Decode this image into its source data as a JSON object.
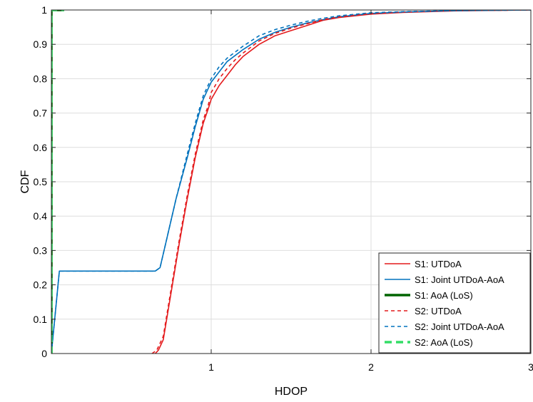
{
  "chart_data": {
    "type": "line",
    "title": "",
    "xlabel": "HDOP",
    "ylabel": "CDF",
    "xlim": [
      0,
      3
    ],
    "ylim": [
      0,
      1
    ],
    "xticks": [
      1,
      2,
      3
    ],
    "xtick_labels": [
      "1",
      "2",
      "3"
    ],
    "yticks": [
      0,
      0.1,
      0.2,
      0.3,
      0.4,
      0.5,
      0.6,
      0.7,
      0.8,
      0.9,
      1
    ],
    "ytick_labels": [
      "0",
      "0.1",
      "0.2",
      "0.3",
      "0.4",
      "0.5",
      "0.6",
      "0.7",
      "0.8",
      "0.9",
      "1"
    ],
    "grid": true,
    "legend_position": "bottom-right",
    "series": [
      {
        "name": "S1: UTDoA",
        "color": "#e41a1c",
        "dash": "solid",
        "width": "normal",
        "x": [
          0.65,
          0.67,
          0.7,
          0.75,
          0.8,
          0.85,
          0.9,
          0.95,
          0.98,
          1.0,
          1.05,
          1.1,
          1.15,
          1.2,
          1.3,
          1.4,
          1.5,
          1.6,
          1.7,
          1.8,
          2.0,
          2.2,
          2.5,
          3.0
        ],
        "y": [
          0.0,
          0.01,
          0.04,
          0.18,
          0.32,
          0.45,
          0.57,
          0.67,
          0.71,
          0.74,
          0.78,
          0.81,
          0.84,
          0.865,
          0.9,
          0.925,
          0.94,
          0.955,
          0.97,
          0.978,
          0.988,
          0.993,
          0.997,
          1.0
        ]
      },
      {
        "name": "S1: Joint UTDoA-AoA",
        "color": "#0072bd",
        "dash": "solid",
        "width": "normal",
        "x": [
          0.0,
          0.05,
          0.1,
          0.3,
          0.5,
          0.65,
          0.68,
          0.72,
          0.78,
          0.85,
          0.9,
          0.95,
          1.0,
          1.05,
          1.1,
          1.2,
          1.3,
          1.4,
          1.5,
          1.6,
          1.7,
          1.8,
          2.0,
          2.2,
          2.5,
          3.0
        ],
        "y": [
          0.0,
          0.24,
          0.24,
          0.24,
          0.24,
          0.24,
          0.25,
          0.33,
          0.45,
          0.57,
          0.66,
          0.74,
          0.79,
          0.82,
          0.85,
          0.885,
          0.915,
          0.935,
          0.95,
          0.962,
          0.972,
          0.98,
          0.99,
          0.994,
          0.998,
          1.0
        ]
      },
      {
        "name": "S1: AoA (LoS)",
        "color": "#006400",
        "dash": "solid",
        "width": "thick",
        "x": [
          0.0,
          0.0,
          0.08
        ],
        "y": [
          0.0,
          1.0,
          1.0
        ]
      },
      {
        "name": "S2: UTDoA",
        "color": "#e41a1c",
        "dash": "dashed",
        "width": "normal",
        "x": [
          0.63,
          0.66,
          0.7,
          0.75,
          0.8,
          0.85,
          0.9,
          0.95,
          0.98,
          1.0,
          1.05,
          1.1,
          1.15,
          1.2,
          1.3,
          1.4,
          1.5,
          1.6,
          1.7,
          1.8,
          2.0,
          2.2,
          2.5,
          3.0
        ],
        "y": [
          0.0,
          0.01,
          0.05,
          0.19,
          0.33,
          0.46,
          0.58,
          0.68,
          0.72,
          0.76,
          0.8,
          0.83,
          0.855,
          0.875,
          0.91,
          0.932,
          0.947,
          0.96,
          0.972,
          0.98,
          0.99,
          0.994,
          0.998,
          1.0
        ]
      },
      {
        "name": "S2: Joint UTDoA-AoA",
        "color": "#0072bd",
        "dash": "dashed",
        "width": "normal",
        "x": [
          0.0,
          0.05,
          0.1,
          0.3,
          0.5,
          0.65,
          0.68,
          0.72,
          0.78,
          0.85,
          0.9,
          0.95,
          1.0,
          1.05,
          1.1,
          1.2,
          1.3,
          1.4,
          1.5,
          1.6,
          1.7,
          1.8,
          2.0,
          2.2,
          2.5,
          3.0
        ],
        "y": [
          0.0,
          0.24,
          0.24,
          0.24,
          0.24,
          0.24,
          0.25,
          0.33,
          0.45,
          0.58,
          0.67,
          0.75,
          0.8,
          0.835,
          0.86,
          0.895,
          0.925,
          0.943,
          0.956,
          0.967,
          0.976,
          0.983,
          0.992,
          0.995,
          0.998,
          1.0
        ]
      },
      {
        "name": "S2: AoA (LoS)",
        "color": "#33dd66",
        "dash": "dashed",
        "width": "thick",
        "x": [
          0.0,
          0.0,
          0.08
        ],
        "y": [
          0.0,
          1.0,
          1.0
        ]
      }
    ]
  }
}
